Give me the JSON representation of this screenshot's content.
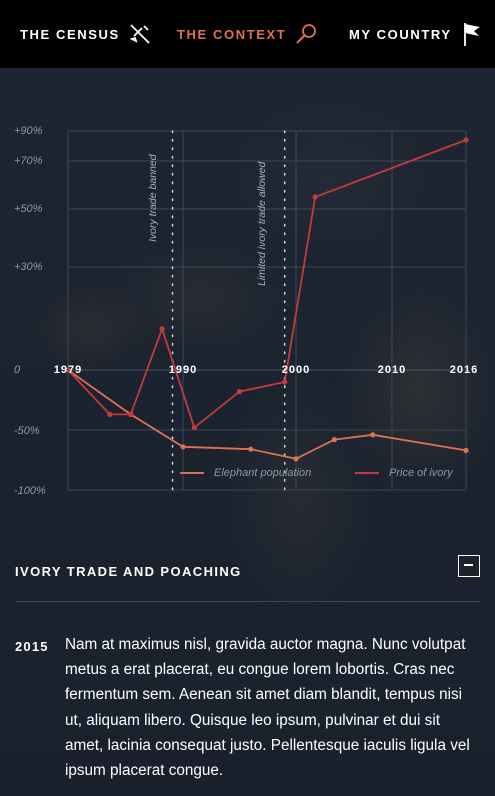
{
  "nav": {
    "items": [
      {
        "label": "THE CENSUS",
        "icon": "airplane-icon"
      },
      {
        "label": "THE CONTEXT",
        "icon": "magnifier-icon",
        "active": true,
        "color": "#e0704f"
      },
      {
        "label": "MY COUNTRY",
        "icon": "flag-icon"
      }
    ]
  },
  "chart_data": {
    "type": "line",
    "categories_x_ticks": [
      "1979",
      "1990",
      "2000",
      "2010",
      "2016"
    ],
    "y_ticks": [
      "+90%",
      "+70%",
      "+50%",
      "+30%",
      "0",
      "-50%",
      "-100%"
    ],
    "ylim": [
      -100,
      90
    ],
    "xlim": [
      1979,
      2016
    ],
    "grid": true,
    "annotations": [
      {
        "text": "Ivory trade banned",
        "x": 1989
      },
      {
        "text": "Limited ivory trade allowed",
        "x": 1999
      }
    ],
    "series": [
      {
        "name": "Elephant population",
        "color": "#e0704f",
        "points": [
          [
            1979,
            0
          ],
          [
            1985,
            -37
          ],
          [
            1990,
            -64
          ],
          [
            1996,
            -66
          ],
          [
            2000,
            -74
          ],
          [
            2004,
            -58
          ],
          [
            2008,
            -54
          ],
          [
            2016,
            -67
          ]
        ]
      },
      {
        "name": "Price of ivory",
        "color": "#c23b3b",
        "points": [
          [
            1979,
            0
          ],
          [
            1983,
            -37
          ],
          [
            1985,
            -37
          ],
          [
            1988,
            12
          ],
          [
            1991,
            -48
          ],
          [
            1995,
            -18
          ],
          [
            1999,
            -10
          ],
          [
            2002,
            55
          ],
          [
            2016,
            84
          ]
        ]
      }
    ],
    "legend_position": "bottom-right"
  },
  "section": {
    "title": "IVORY TRADE AND POACHING",
    "entry": {
      "year": "2015",
      "text": "Nam at maximus nisl, gravida auctor magna. Nunc volutpat metus a erat placerat, eu congue lorem lobortis. Cras nec fermentum sem. Aenean sit amet diam blandit, tempus nisi ut, aliquam libero. Quisque leo ipsum, pulvinar et dui sit amet, lacinia consequat justo. Pellentesque iaculis ligula vel ipsum placerat congue."
    }
  }
}
